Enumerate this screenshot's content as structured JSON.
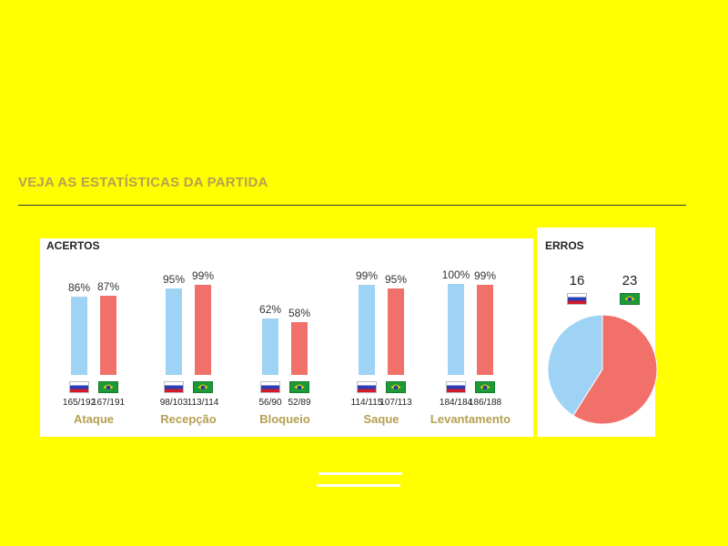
{
  "header": {
    "title": "VEJA AS ESTATÍSTICAS DA PARTIDA"
  },
  "colors": {
    "russia": "#9fd3f5",
    "brazil": "#f2706a",
    "background": "#ffff00"
  },
  "chart_data": [
    {
      "type": "bar",
      "title": "ACERTOS",
      "ylim": [
        0,
        100
      ],
      "categories": [
        "Ataque",
        "Recepção",
        "Bloqueio",
        "Saque",
        "Levantamento"
      ],
      "series": [
        {
          "flag": "russia-flag-icon",
          "values": [
            86,
            95,
            62,
            99,
            100
          ],
          "labels": [
            "86%",
            "95%",
            "62%",
            "99%",
            "100%"
          ],
          "fractions": [
            "165/192",
            "98/103",
            "56/90",
            "114/115",
            "184/184"
          ]
        },
        {
          "flag": "brazil-flag-icon",
          "values": [
            87,
            99,
            58,
            95,
            99
          ],
          "labels": [
            "87%",
            "99%",
            "58%",
            "95%",
            "99%"
          ],
          "fractions": [
            "167/191",
            "113/114",
            "52/89",
            "107/113",
            "186/188"
          ]
        }
      ]
    },
    {
      "type": "pie",
      "title": "ERROS",
      "slices": [
        {
          "flag": "russia-flag-icon",
          "value": 16,
          "label": "16"
        },
        {
          "flag": "brazil-flag-icon",
          "value": 23,
          "label": "23"
        }
      ]
    }
  ]
}
